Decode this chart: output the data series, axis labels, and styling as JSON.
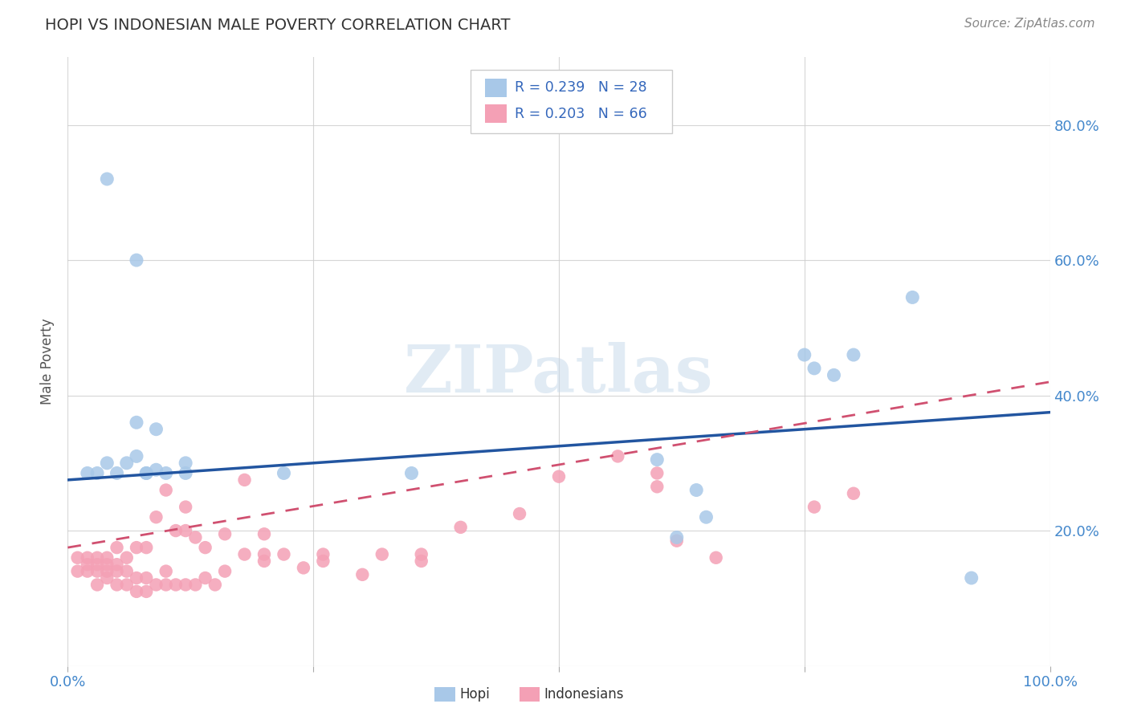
{
  "title": "HOPI VS INDONESIAN MALE POVERTY CORRELATION CHART",
  "source": "Source: ZipAtlas.com",
  "ylabel": "Male Poverty",
  "xlim": [
    0.0,
    1.0
  ],
  "ylim": [
    0.0,
    0.9
  ],
  "xtick_positions": [
    0.0,
    0.25,
    0.5,
    0.75,
    1.0
  ],
  "xtick_labels": [
    "0.0%",
    "",
    "",
    "",
    "100.0%"
  ],
  "ytick_positions": [
    0.0,
    0.2,
    0.4,
    0.6,
    0.8
  ],
  "ytick_labels_right": [
    "",
    "20.0%",
    "40.0%",
    "60.0%",
    "80.0%"
  ],
  "legend_hopi_R": "0.239",
  "legend_hopi_N": "28",
  "legend_indo_R": "0.203",
  "legend_indo_N": "66",
  "hopi_color": "#a8c8e8",
  "indo_color": "#f4a0b5",
  "trend_hopi_color": "#2255a0",
  "trend_indo_color": "#d05070",
  "watermark_text": "ZIPatlas",
  "hopi_x": [
    0.04,
    0.07,
    0.02,
    0.03,
    0.04,
    0.05,
    0.06,
    0.07,
    0.08,
    0.09,
    0.1,
    0.12,
    0.12,
    0.07,
    0.08,
    0.09,
    0.22,
    0.35,
    0.6,
    0.62,
    0.64,
    0.65,
    0.75,
    0.76,
    0.78,
    0.8,
    0.86,
    0.92
  ],
  "hopi_y": [
    0.72,
    0.6,
    0.285,
    0.285,
    0.3,
    0.285,
    0.3,
    0.31,
    0.285,
    0.29,
    0.285,
    0.3,
    0.285,
    0.36,
    0.285,
    0.35,
    0.285,
    0.285,
    0.305,
    0.19,
    0.26,
    0.22,
    0.46,
    0.44,
    0.43,
    0.46,
    0.545,
    0.13
  ],
  "indo_x": [
    0.01,
    0.01,
    0.02,
    0.02,
    0.02,
    0.03,
    0.03,
    0.03,
    0.03,
    0.04,
    0.04,
    0.04,
    0.04,
    0.05,
    0.05,
    0.05,
    0.05,
    0.06,
    0.06,
    0.06,
    0.07,
    0.07,
    0.07,
    0.08,
    0.08,
    0.08,
    0.09,
    0.09,
    0.1,
    0.1,
    0.1,
    0.11,
    0.11,
    0.12,
    0.12,
    0.12,
    0.13,
    0.13,
    0.14,
    0.14,
    0.15,
    0.16,
    0.16,
    0.18,
    0.18,
    0.2,
    0.2,
    0.2,
    0.22,
    0.24,
    0.26,
    0.26,
    0.3,
    0.32,
    0.36,
    0.36,
    0.4,
    0.46,
    0.5,
    0.56,
    0.6,
    0.6,
    0.62,
    0.66,
    0.76,
    0.8
  ],
  "indo_y": [
    0.14,
    0.16,
    0.14,
    0.15,
    0.16,
    0.12,
    0.14,
    0.15,
    0.16,
    0.13,
    0.14,
    0.15,
    0.16,
    0.12,
    0.14,
    0.15,
    0.175,
    0.12,
    0.14,
    0.16,
    0.11,
    0.13,
    0.175,
    0.11,
    0.13,
    0.175,
    0.12,
    0.22,
    0.12,
    0.14,
    0.26,
    0.12,
    0.2,
    0.12,
    0.2,
    0.235,
    0.12,
    0.19,
    0.13,
    0.175,
    0.12,
    0.14,
    0.195,
    0.165,
    0.275,
    0.155,
    0.165,
    0.195,
    0.165,
    0.145,
    0.155,
    0.165,
    0.135,
    0.165,
    0.155,
    0.165,
    0.205,
    0.225,
    0.28,
    0.31,
    0.265,
    0.285,
    0.185,
    0.16,
    0.235,
    0.255
  ],
  "hopi_trend_x0": 0.0,
  "hopi_trend_y0": 0.275,
  "hopi_trend_x1": 1.0,
  "hopi_trend_y1": 0.375,
  "indo_trend_x0": 0.0,
  "indo_trend_y0": 0.175,
  "indo_trend_x1": 1.0,
  "indo_trend_y1": 0.42
}
